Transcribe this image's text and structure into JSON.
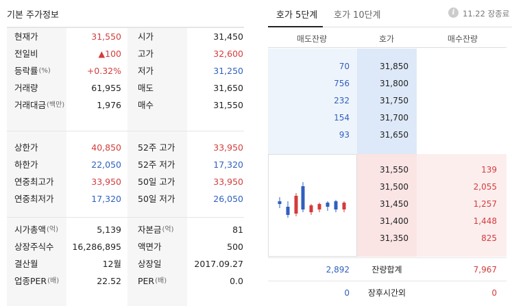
{
  "left": {
    "title": "기본 주가정보",
    "group1": [
      {
        "l1": "현재가",
        "l1s": "",
        "v1": "31,550",
        "c1": "red",
        "l2": "시가",
        "l2s": "",
        "v2": "31,450",
        "c2": ""
      },
      {
        "l1": "전일비",
        "l1s": "",
        "v1": "▲100",
        "c1": "red",
        "l2": "고가",
        "l2s": "",
        "v2": "32,600",
        "c2": "red"
      },
      {
        "l1": "등락률",
        "l1s": "(%)",
        "v1": "+0.32%",
        "c1": "red",
        "l2": "저가",
        "l2s": "",
        "v2": "31,250",
        "c2": "blue"
      },
      {
        "l1": "거래량",
        "l1s": "",
        "v1": "61,955",
        "c1": "",
        "l2": "매도",
        "l2s": "",
        "v2": "31,650",
        "c2": ""
      },
      {
        "l1": "거래대금",
        "l1s": "(백만)",
        "v1": "1,976",
        "c1": "",
        "l2": "매수",
        "l2s": "",
        "v2": "31,550",
        "c2": ""
      }
    ],
    "group2": [
      {
        "l1": "상한가",
        "l1s": "",
        "v1": "40,850",
        "c1": "red",
        "l2": "52주 고가",
        "l2s": "",
        "v2": "33,950",
        "c2": "red"
      },
      {
        "l1": "하한가",
        "l1s": "",
        "v1": "22,050",
        "c1": "blue",
        "l2": "52주 저가",
        "l2s": "",
        "v2": "17,320",
        "c2": "blue"
      },
      {
        "l1": "연중최고가",
        "l1s": "",
        "v1": "33,950",
        "c1": "red",
        "l2": "50일 고가",
        "l2s": "",
        "v2": "33,950",
        "c2": "red"
      },
      {
        "l1": "연중최저가",
        "l1s": "",
        "v1": "17,320",
        "c1": "blue",
        "l2": "50일 저가",
        "l2s": "",
        "v2": "26,050",
        "c2": "blue"
      }
    ],
    "group3": [
      {
        "l1": "시가총액",
        "l1s": "(억)",
        "v1": "5,139",
        "c1": "",
        "l2": "자본금",
        "l2s": "(억)",
        "v2": "81",
        "c2": ""
      },
      {
        "l1": "상장주식수",
        "l1s": "",
        "v1": "16,286,895",
        "c1": "",
        "l2": "액면가",
        "l2s": "",
        "v2": "500",
        "c2": ""
      },
      {
        "l1": "결산월",
        "l1s": "",
        "v1": "12월",
        "c1": "",
        "l2": "상장일",
        "l2s": "",
        "v2": "2017.09.27",
        "c2": ""
      },
      {
        "l1": "업종PER",
        "l1s": "(배)",
        "v1": "22.52",
        "c1": "",
        "l2": "PER",
        "l2s": "(배)",
        "v2": "0.0",
        "c2": ""
      }
    ]
  },
  "tabs": {
    "active": "호가 5단계",
    "inactive": "호가 10단계",
    "info_icon": "i",
    "date_status": "11.22 장종료"
  },
  "orderbook": {
    "headers": {
      "ask": "매도잔량",
      "price": "호가",
      "bid": "매수잔량"
    },
    "asks": [
      {
        "qty": "70",
        "price": "31,850"
      },
      {
        "qty": "756",
        "price": "31,800"
      },
      {
        "qty": "232",
        "price": "31,750"
      },
      {
        "qty": "154",
        "price": "31,700"
      },
      {
        "qty": "93",
        "price": "31,650"
      }
    ],
    "bids": [
      {
        "qty": "139",
        "price": "31,550"
      },
      {
        "qty": "2,055",
        "price": "31,500"
      },
      {
        "qty": "1,257",
        "price": "31,450"
      },
      {
        "qty": "1,448",
        "price": "31,400"
      },
      {
        "qty": "825",
        "price": "31,350"
      }
    ],
    "total": {
      "ask": "2,892",
      "label": "잔량합계",
      "bid": "7,967"
    },
    "after_hours": {
      "ask": "0",
      "label": "장후시간외",
      "bid": "0"
    }
  },
  "mini_chart": {
    "candles": [
      {
        "dir": "blue"
      },
      {
        "dir": "blue"
      },
      {
        "dir": "red"
      },
      {
        "dir": "blue"
      },
      {
        "dir": "red"
      },
      {
        "dir": "red"
      },
      {
        "dir": "blue"
      },
      {
        "dir": "blue"
      },
      {
        "dir": "red"
      }
    ]
  },
  "colors": {
    "red": "#d43b3b",
    "blue": "#2f5fbf"
  }
}
